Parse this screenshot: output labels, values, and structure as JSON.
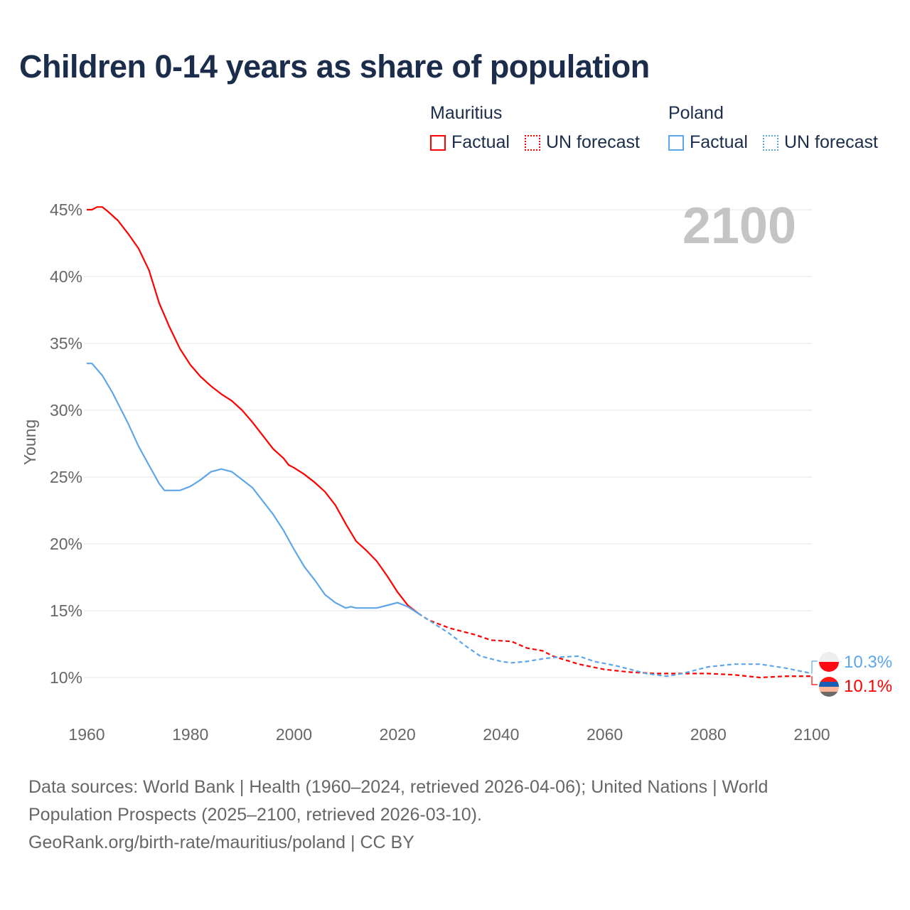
{
  "title": "Children 0-14 years as share of population",
  "legend": [
    {
      "group": "Mauritius",
      "factual": "Factual",
      "forecast": "UN forecast",
      "color": "#ff0000"
    },
    {
      "group": "Poland",
      "factual": "Factual",
      "forecast": "UN forecast",
      "color": "#5ea6ea"
    }
  ],
  "year_watermark": "2100",
  "source_lines": [
    "Data sources: World Bank | Health (1960–2024, retrieved 2026-04-06); United Nations | World Population Prospects (2025–2100, retrieved 2026-03-10).",
    "GeoRank.org/birth-rate/mauritius/poland | CC BY"
  ],
  "chart_data": {
    "type": "line",
    "title": "Children 0-14 years as share of population",
    "ylabel": "Young",
    "xlabel": "",
    "xlim": [
      1960,
      2100
    ],
    "ylim": [
      8,
      46
    ],
    "xticks": [
      1960,
      1980,
      2000,
      2020,
      2040,
      2060,
      2080,
      2100
    ],
    "xtick_labels": [
      "1960",
      "1980",
      "2000",
      "2020",
      "2040",
      "2060",
      "2080",
      "2100"
    ],
    "yticks": [
      10,
      15,
      20,
      25,
      30,
      35,
      40,
      45
    ],
    "ytick_labels": [
      "10%",
      "15%",
      "20%",
      "25%",
      "30%",
      "35%",
      "40%",
      "45%"
    ],
    "grid": true,
    "series": [
      {
        "name": "Mauritius",
        "color": "#ff0000",
        "end_label": "10.1%",
        "factual": [
          [
            1960,
            45.0
          ],
          [
            1961,
            45.0
          ],
          [
            1962,
            45.2
          ],
          [
            1963,
            45.2
          ],
          [
            1964,
            44.9
          ],
          [
            1966,
            44.2
          ],
          [
            1968,
            43.2
          ],
          [
            1970,
            42.1
          ],
          [
            1972,
            40.5
          ],
          [
            1974,
            38.0
          ],
          [
            1976,
            36.2
          ],
          [
            1978,
            34.6
          ],
          [
            1980,
            33.4
          ],
          [
            1982,
            32.5
          ],
          [
            1984,
            31.8
          ],
          [
            1986,
            31.2
          ],
          [
            1988,
            30.7
          ],
          [
            1990,
            30.0
          ],
          [
            1992,
            29.1
          ],
          [
            1994,
            28.1
          ],
          [
            1996,
            27.1
          ],
          [
            1998,
            26.4
          ],
          [
            1999,
            25.9
          ],
          [
            2000,
            25.7
          ],
          [
            2002,
            25.2
          ],
          [
            2004,
            24.6
          ],
          [
            2006,
            23.9
          ],
          [
            2008,
            22.9
          ],
          [
            2010,
            21.5
          ],
          [
            2012,
            20.2
          ],
          [
            2014,
            19.5
          ],
          [
            2016,
            18.7
          ],
          [
            2018,
            17.6
          ],
          [
            2020,
            16.4
          ],
          [
            2022,
            15.4
          ],
          [
            2024,
            14.8
          ]
        ],
        "forecast": [
          [
            2024,
            14.8
          ],
          [
            2026,
            14.3
          ],
          [
            2030,
            13.7
          ],
          [
            2035,
            13.2
          ],
          [
            2038,
            12.8
          ],
          [
            2042,
            12.7
          ],
          [
            2045,
            12.2
          ],
          [
            2048,
            12.0
          ],
          [
            2050,
            11.6
          ],
          [
            2055,
            11.0
          ],
          [
            2060,
            10.6
          ],
          [
            2065,
            10.4
          ],
          [
            2070,
            10.3
          ],
          [
            2080,
            10.3
          ],
          [
            2085,
            10.2
          ],
          [
            2090,
            10.0
          ],
          [
            2095,
            10.1
          ],
          [
            2100,
            10.1
          ]
        ]
      },
      {
        "name": "Poland",
        "color": "#5ea6ea",
        "end_label": "10.3%",
        "factual": [
          [
            1960,
            33.5
          ],
          [
            1961,
            33.5
          ],
          [
            1963,
            32.6
          ],
          [
            1965,
            31.3
          ],
          [
            1968,
            29.0
          ],
          [
            1970,
            27.3
          ],
          [
            1972,
            25.9
          ],
          [
            1974,
            24.5
          ],
          [
            1975,
            24.0
          ],
          [
            1978,
            24.0
          ],
          [
            1980,
            24.3
          ],
          [
            1982,
            24.8
          ],
          [
            1984,
            25.4
          ],
          [
            1986,
            25.6
          ],
          [
            1988,
            25.4
          ],
          [
            1990,
            24.8
          ],
          [
            1992,
            24.2
          ],
          [
            1994,
            23.2
          ],
          [
            1996,
            22.2
          ],
          [
            1998,
            21.0
          ],
          [
            2000,
            19.6
          ],
          [
            2002,
            18.3
          ],
          [
            2004,
            17.3
          ],
          [
            2006,
            16.2
          ],
          [
            2008,
            15.6
          ],
          [
            2010,
            15.2
          ],
          [
            2011,
            15.3
          ],
          [
            2012,
            15.2
          ],
          [
            2016,
            15.2
          ],
          [
            2018,
            15.4
          ],
          [
            2020,
            15.6
          ],
          [
            2022,
            15.3
          ],
          [
            2024,
            14.8
          ]
        ],
        "forecast": [
          [
            2024,
            14.8
          ],
          [
            2026,
            14.3
          ],
          [
            2030,
            13.3
          ],
          [
            2033,
            12.4
          ],
          [
            2036,
            11.6
          ],
          [
            2040,
            11.2
          ],
          [
            2042,
            11.1
          ],
          [
            2045,
            11.2
          ],
          [
            2048,
            11.4
          ],
          [
            2050,
            11.5
          ],
          [
            2055,
            11.6
          ],
          [
            2058,
            11.2
          ],
          [
            2062,
            10.9
          ],
          [
            2065,
            10.6
          ],
          [
            2068,
            10.3
          ],
          [
            2072,
            10.1
          ],
          [
            2075,
            10.3
          ],
          [
            2080,
            10.8
          ],
          [
            2085,
            11.0
          ],
          [
            2090,
            11.0
          ],
          [
            2095,
            10.7
          ],
          [
            2100,
            10.3
          ]
        ]
      }
    ]
  }
}
